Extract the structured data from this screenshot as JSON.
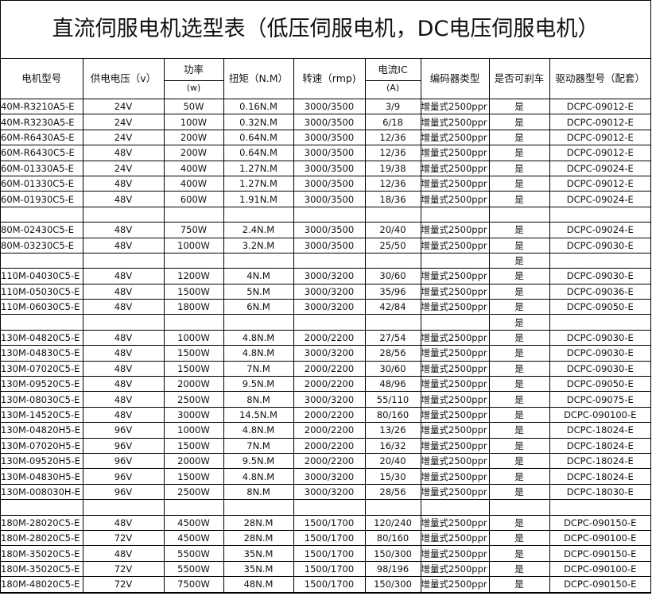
{
  "title": "直流伺服电机选型表（低压伺服电机，DC电压伺服电机）",
  "table": {
    "headers": [
      "电机型号",
      "供电电压（v）",
      {
        "text": "功率",
        "unit": "(w)"
      },
      "扭矩（N.M）",
      "转速（rmp)",
      {
        "text": "电流IC",
        "unit": "(A)"
      },
      "编码器类型",
      "是否可刹车",
      "驱动器型号（配套）"
    ],
    "rows": [
      [
        "40M-R3210A5-E",
        "24V",
        "50W",
        "0.16N.M",
        "3000/3500",
        "3/9",
        "增量式2500ppr",
        "是",
        "DCPC-09012-E"
      ],
      [
        "40M-R3230A5-E",
        "24V",
        "100W",
        "0.32N.M",
        "3000/3500",
        "6/18",
        "增量式2500ppr",
        "是",
        "DCPC-09012-E"
      ],
      [
        "60M-R6430A5-E",
        "24V",
        "200W",
        "0.64N.M",
        "3000/3500",
        "12/36",
        "增量式2500ppr",
        "是",
        "DCPC-09012-E"
      ],
      [
        "60M-R6430C5-E",
        "48V",
        "200W",
        "0.64N.M",
        "3000/3500",
        "12/36",
        "增量式2500ppr",
        "是",
        "DCPC-09012-E"
      ],
      [
        "60M-01330A5-E",
        "24V",
        "400W",
        "1.27N.M",
        "3000/3500",
        "19/38",
        "增量式2500ppr",
        "是",
        "DCPC-09024-E"
      ],
      [
        "60M-01330C5-E",
        "48V",
        "400W",
        "1.27N.M",
        "3000/3500",
        "12/36",
        "增量式2500ppr",
        "是",
        "DCPC-09012-E"
      ],
      [
        "60M-01930C5-E",
        "48V",
        "600W",
        "1.91N.M",
        "3000/3500",
        "18/36",
        "增量式2500ppr",
        "是",
        "DCPC-09024-E"
      ],
      [
        null,
        null,
        null,
        null,
        null,
        null,
        null,
        null,
        null
      ],
      [
        "80M-02430C5-E",
        "48V",
        "750W",
        "2.4N.M",
        "3000/3500",
        "20/40",
        "增量式2500ppr",
        "是",
        "DCPC-09024-E"
      ],
      [
        "80M-03230C5-E",
        "48V",
        "1000W",
        "3.2N.M",
        "3000/3500",
        "25/50",
        "增量式2500ppr",
        "是",
        "DCPC-09030-E"
      ],
      [
        null,
        null,
        null,
        null,
        null,
        null,
        null,
        "是",
        null
      ],
      [
        "110M-04030C5-E",
        "48V",
        "1200W",
        "4N.M",
        "3000/3200",
        "30/60",
        "增量式2500ppr",
        "是",
        "DCPC-09030-E"
      ],
      [
        "110M-05030C5-E",
        "48V",
        "1500W",
        "5N.M",
        "3000/3200",
        "35/96",
        "增量式2500ppr",
        "是",
        "DCPC-09036-E"
      ],
      [
        "110M-06030C5-E",
        "48V",
        "1800W",
        "6N.M",
        "3000/3200",
        "42/84",
        "增量式2500ppr",
        "是",
        "DCPC-09050-E"
      ],
      [
        null,
        null,
        null,
        null,
        null,
        null,
        null,
        "是",
        null
      ],
      [
        "130M-04820C5-E",
        "48V",
        "1000W",
        "4.8N.M",
        "2000/2200",
        "27/54",
        "增量式2500ppr",
        "是",
        "DCPC-09030-E"
      ],
      [
        "130M-04830C5-E",
        "48V",
        "1500W",
        "4.8N.M",
        "3000/3200",
        "28/56",
        "增量式2500ppr",
        "是",
        "DCPC-09030-E"
      ],
      [
        "130M-07020C5-E",
        "48V",
        "1500W",
        "7N.M",
        "2000/2200",
        "30/60",
        "增量式2500ppr",
        "是",
        "DCPC-09030-E"
      ],
      [
        "130M-09520C5-E",
        "48V",
        "2000W",
        "9.5N.M",
        "2000/2200",
        "48/96",
        "增量式2500ppr",
        "是",
        "DCPC-09050-E"
      ],
      [
        "130M-08030C5-E",
        "48V",
        "2500W",
        "8N.M",
        "3000/3200",
        "55/110",
        "增量式2500ppr",
        "是",
        "DCPC-09075-E"
      ],
      [
        "130M-14520C5-E",
        "48V",
        "3000W",
        "14.5N.M",
        "2000/2200",
        "80/160",
        "增量式2500ppr",
        "是",
        "DCPC-090100-E"
      ],
      [
        "130M-04820H5-E",
        "96V",
        "1000W",
        "4.8N.M",
        "2000/2200",
        "13/26",
        "增量式2500ppr",
        "是",
        "DCPC-18024-E"
      ],
      [
        "130M-07020H5-E",
        "96V",
        "1500W",
        "7N.M",
        "2000/2200",
        "16/32",
        "增量式2500ppr",
        "是",
        "DCPC-18024-E"
      ],
      [
        "130M-09520H5-E",
        "96V",
        "2000W",
        "9.5N.M",
        "2000/2200",
        "20/40",
        "增量式2500ppr",
        "是",
        "DCPC-18024-E"
      ],
      [
        "130M-04830H5-E",
        "96V",
        "1500W",
        "4.8N.M",
        "3000/3200",
        "15/30",
        "增量式2500ppr",
        "是",
        "DCPC-18024-E"
      ],
      [
        "130M-008030H-E",
        "96V",
        "2500W",
        "8N.M",
        "3000/3200",
        "28/56",
        "增量式2500ppr",
        "是",
        "DCPC-18030-E"
      ],
      [
        null,
        null,
        null,
        null,
        null,
        null,
        null,
        null,
        null
      ],
      [
        "180M-28020C5-E",
        "48V",
        "4500W",
        "28N.M",
        "1500/1700",
        "120/240",
        "增量式2500ppr",
        "是",
        "DCPC-090150-E"
      ],
      [
        "180M-28020C5-E",
        "72V",
        "4500W",
        "28N.M",
        "1500/1700",
        "80/160",
        "增量式2500ppr",
        "是",
        "DCPC-090100-E"
      ],
      [
        "180M-35020C5-E",
        "48V",
        "5500W",
        "35N.M",
        "1500/1700",
        "150/300",
        "增量式2500ppr",
        "是",
        "DCPC-090150-E"
      ],
      [
        "180M-35020C5-E",
        "72V",
        "5500W",
        "35N.M",
        "1500/1700",
        "98/196",
        "增量式2500ppr",
        "是",
        "DCPC-090100-E"
      ],
      [
        "180M-48020C5-E",
        "72V",
        "7500W",
        "48N.M",
        "1500/1700",
        "150/300",
        "增量式2500ppr",
        "是",
        "DCPC-090150-E"
      ]
    ]
  }
}
